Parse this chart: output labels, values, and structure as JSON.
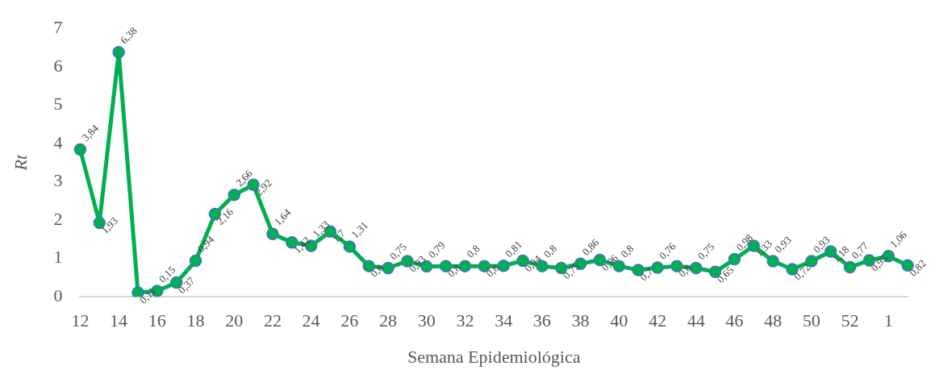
{
  "chart_data": {
    "type": "line",
    "xlabel": "Semana Epidemiológica",
    "ylabel": "Rt",
    "categories": [
      "12",
      null,
      "14",
      null,
      "16",
      null,
      "18",
      null,
      "20",
      null,
      "22",
      null,
      "24",
      null,
      "26",
      null,
      "28",
      null,
      "30",
      null,
      "32",
      null,
      "34",
      null,
      "36",
      null,
      "38",
      null,
      "40",
      null,
      "42",
      null,
      "44",
      null,
      "46",
      null,
      "48",
      null,
      "50",
      null,
      "52",
      null,
      "1",
      null
    ],
    "series": [
      {
        "color": "#00b050",
        "values": [
          3.84,
          1.93,
          6.38,
          0.11,
          0.15,
          0.37,
          0.94,
          2.16,
          2.66,
          2.92,
          1.64,
          1.42,
          1.33,
          1.7,
          1.31,
          0.8,
          0.75,
          0.93,
          0.79,
          0.8,
          0.8,
          0.8,
          0.81,
          0.94,
          0.8,
          0.75,
          0.86,
          0.96,
          0.8,
          0.7,
          0.76,
          0.8,
          0.75,
          0.65,
          0.98,
          1.33,
          0.93,
          0.72,
          0.93,
          1.18,
          0.77,
          0.95,
          1.06,
          0.82
        ]
      }
    ],
    "value_labels": [
      "3,84",
      "1,93",
      "6,38",
      "0,11",
      "0,15",
      "0,37",
      "0,94",
      "2,16",
      "2,66",
      "2,92",
      "1,64",
      "1,42",
      "1,33",
      "1,7",
      "1,31",
      "0,8",
      "0,75",
      "0,93",
      "0,79",
      "0,8",
      "0,8",
      "0,8",
      "0,81",
      "0,94",
      "0,8",
      "0,75",
      "0,86",
      "0,96",
      "0,8",
      "0,7",
      "0,76",
      "0,8",
      "0,75",
      "0,65",
      "0,98",
      "1,33",
      "0,93",
      "0,72",
      "0,93",
      "1,18",
      "0,77",
      "0,95",
      "1,06",
      "0,82"
    ],
    "ylim": [
      0,
      7
    ],
    "yticks": [
      0,
      1,
      2,
      3,
      4,
      5,
      6,
      7
    ],
    "grid": false,
    "legend": false,
    "marker": "circle",
    "line_style": "solid"
  }
}
